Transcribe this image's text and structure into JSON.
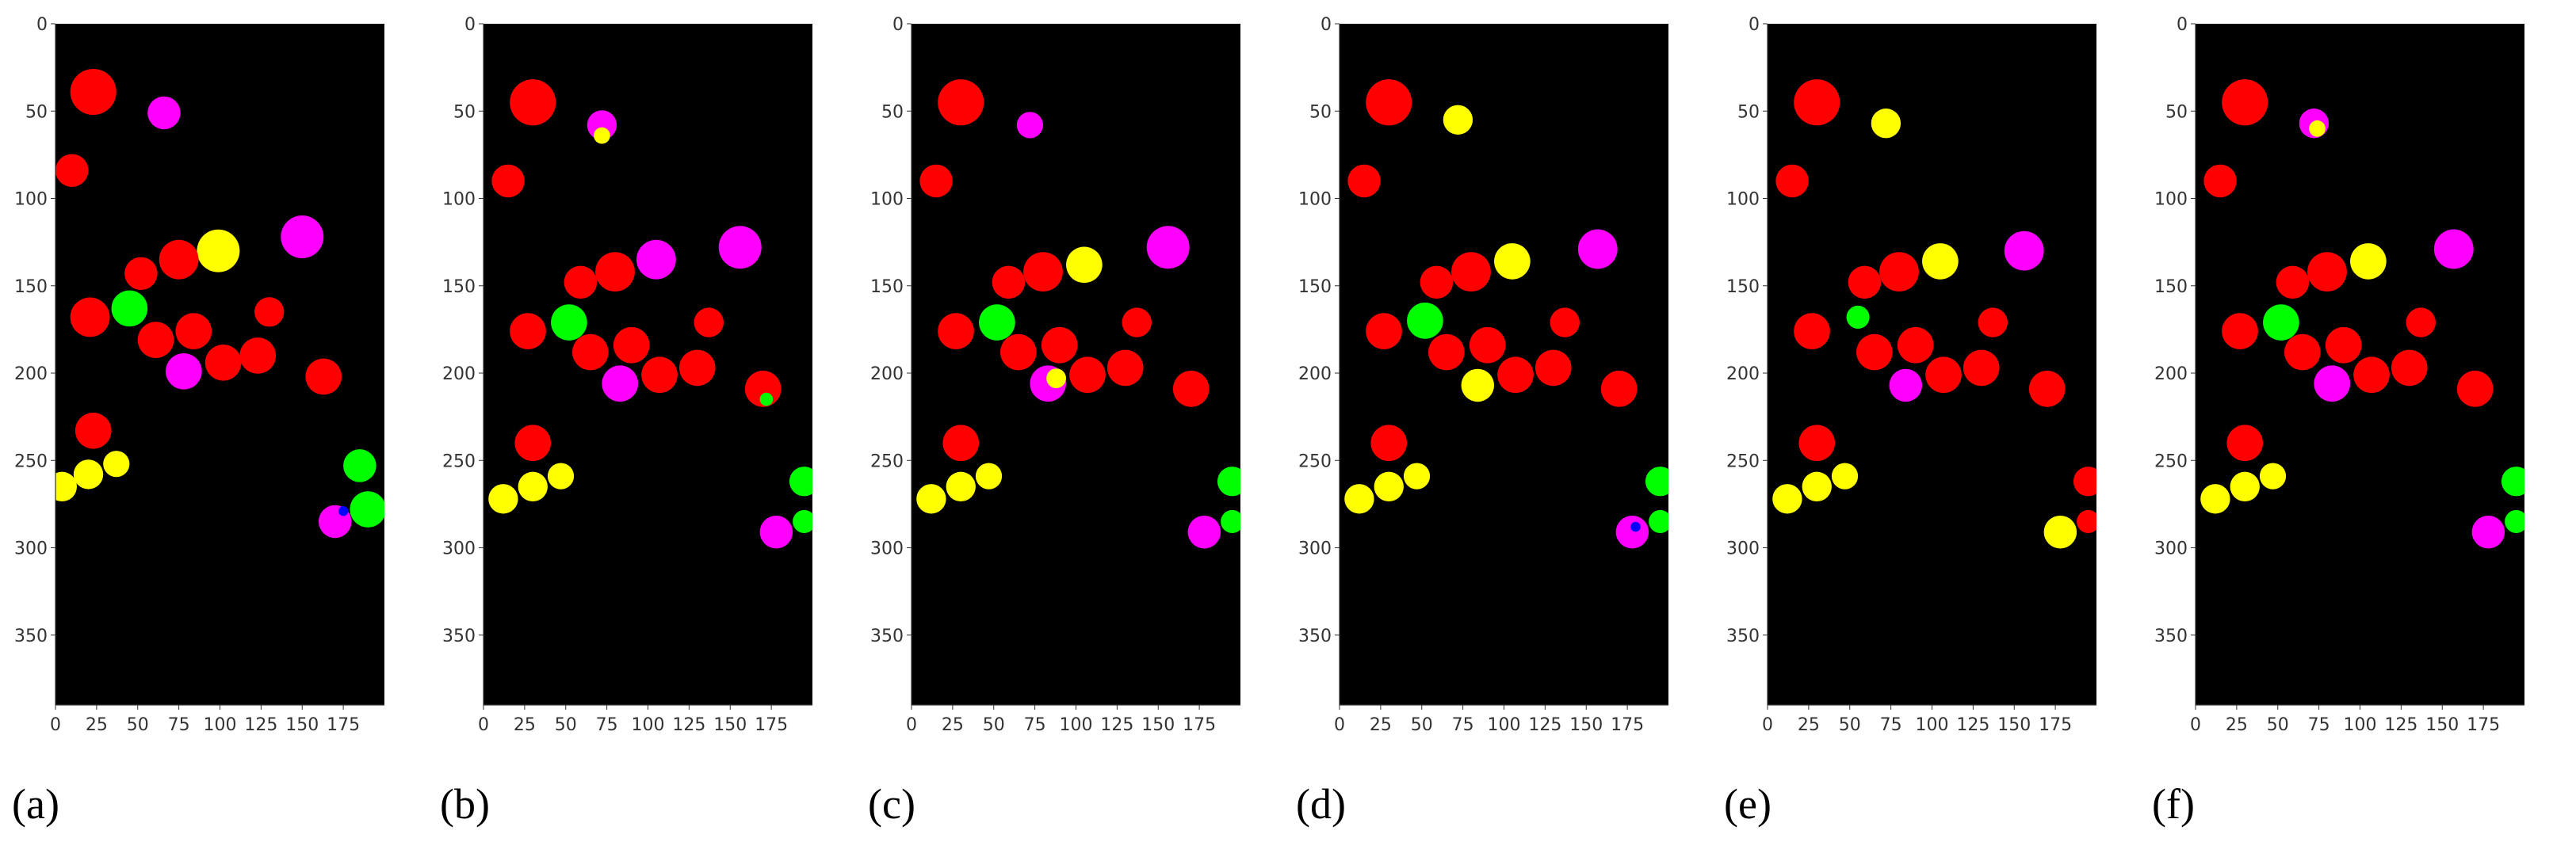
{
  "colors": {
    "background": "#000000",
    "red": "#ff0000",
    "yellow": "#ffff00",
    "magenta": "#ff00ff",
    "green": "#00ff00",
    "blue": "#0000ff"
  },
  "axes": {
    "x_range": [
      0,
      200
    ],
    "y_range": [
      390,
      0
    ],
    "x_ticks": [
      "0",
      "25",
      "50",
      "75",
      "100",
      "125",
      "150",
      "175"
    ],
    "y_ticks": [
      "0",
      "50",
      "100",
      "150",
      "200",
      "250",
      "300",
      "350"
    ]
  },
  "panels": [
    {
      "caption": "(a)",
      "blobs": [
        {
          "x": 23,
          "y": 39,
          "r": 14,
          "color": "red"
        },
        {
          "x": 10,
          "y": 84,
          "r": 10,
          "color": "red"
        },
        {
          "x": 66,
          "y": 51,
          "r": 10,
          "color": "magenta"
        },
        {
          "x": 99,
          "y": 130,
          "r": 13,
          "color": "yellow"
        },
        {
          "x": 150,
          "y": 122,
          "r": 13,
          "color": "magenta"
        },
        {
          "x": 52,
          "y": 143,
          "r": 10,
          "color": "red"
        },
        {
          "x": 75,
          "y": 135,
          "r": 12,
          "color": "red"
        },
        {
          "x": 45,
          "y": 163,
          "r": 11,
          "color": "green"
        },
        {
          "x": 21,
          "y": 168,
          "r": 12,
          "color": "red"
        },
        {
          "x": 61,
          "y": 181,
          "r": 11,
          "color": "red"
        },
        {
          "x": 84,
          "y": 176,
          "r": 11,
          "color": "red"
        },
        {
          "x": 130,
          "y": 165,
          "r": 9,
          "color": "red"
        },
        {
          "x": 78,
          "y": 199,
          "r": 11,
          "color": "magenta"
        },
        {
          "x": 102,
          "y": 194,
          "r": 11,
          "color": "red"
        },
        {
          "x": 123,
          "y": 190,
          "r": 11,
          "color": "red"
        },
        {
          "x": 163,
          "y": 202,
          "r": 11,
          "color": "red"
        },
        {
          "x": 23,
          "y": 233,
          "r": 11,
          "color": "red"
        },
        {
          "x": 4,
          "y": 265,
          "r": 9,
          "color": "yellow"
        },
        {
          "x": 20,
          "y": 258,
          "r": 9,
          "color": "yellow"
        },
        {
          "x": 37,
          "y": 252,
          "r": 8,
          "color": "yellow"
        },
        {
          "x": 185,
          "y": 253,
          "r": 10,
          "color": "green"
        },
        {
          "x": 190,
          "y": 278,
          "r": 11,
          "color": "green"
        },
        {
          "x": 170,
          "y": 285,
          "r": 10,
          "color": "magenta"
        },
        {
          "x": 175,
          "y": 279,
          "r": 3,
          "color": "blue"
        }
      ]
    },
    {
      "caption": "(b)",
      "blobs": [
        {
          "x": 30,
          "y": 45,
          "r": 14,
          "color": "red"
        },
        {
          "x": 15,
          "y": 90,
          "r": 10,
          "color": "red"
        },
        {
          "x": 72,
          "y": 58,
          "r": 9,
          "color": "magenta"
        },
        {
          "x": 72,
          "y": 64,
          "r": 5,
          "color": "yellow"
        },
        {
          "x": 105,
          "y": 135,
          "r": 12,
          "color": "magenta"
        },
        {
          "x": 156,
          "y": 128,
          "r": 13,
          "color": "magenta"
        },
        {
          "x": 59,
          "y": 148,
          "r": 10,
          "color": "red"
        },
        {
          "x": 80,
          "y": 142,
          "r": 12,
          "color": "red"
        },
        {
          "x": 52,
          "y": 171,
          "r": 11,
          "color": "green"
        },
        {
          "x": 27,
          "y": 176,
          "r": 11,
          "color": "red"
        },
        {
          "x": 65,
          "y": 188,
          "r": 11,
          "color": "red"
        },
        {
          "x": 90,
          "y": 184,
          "r": 11,
          "color": "red"
        },
        {
          "x": 137,
          "y": 171,
          "r": 9,
          "color": "red"
        },
        {
          "x": 83,
          "y": 206,
          "r": 11,
          "color": "magenta"
        },
        {
          "x": 107,
          "y": 201,
          "r": 11,
          "color": "red"
        },
        {
          "x": 130,
          "y": 197,
          "r": 11,
          "color": "red"
        },
        {
          "x": 170,
          "y": 209,
          "r": 11,
          "color": "red"
        },
        {
          "x": 172,
          "y": 215,
          "r": 4,
          "color": "green"
        },
        {
          "x": 30,
          "y": 240,
          "r": 11,
          "color": "red"
        },
        {
          "x": 12,
          "y": 272,
          "r": 9,
          "color": "yellow"
        },
        {
          "x": 30,
          "y": 265,
          "r": 9,
          "color": "yellow"
        },
        {
          "x": 47,
          "y": 259,
          "r": 8,
          "color": "yellow"
        },
        {
          "x": 195,
          "y": 262,
          "r": 9,
          "color": "green"
        },
        {
          "x": 195,
          "y": 285,
          "r": 7,
          "color": "green"
        },
        {
          "x": 178,
          "y": 291,
          "r": 10,
          "color": "magenta"
        }
      ]
    },
    {
      "caption": "(c)",
      "blobs": [
        {
          "x": 30,
          "y": 45,
          "r": 14,
          "color": "red"
        },
        {
          "x": 15,
          "y": 90,
          "r": 10,
          "color": "red"
        },
        {
          "x": 72,
          "y": 58,
          "r": 8,
          "color": "magenta"
        },
        {
          "x": 105,
          "y": 138,
          "r": 11,
          "color": "yellow"
        },
        {
          "x": 156,
          "y": 128,
          "r": 13,
          "color": "magenta"
        },
        {
          "x": 59,
          "y": 148,
          "r": 10,
          "color": "red"
        },
        {
          "x": 80,
          "y": 142,
          "r": 12,
          "color": "red"
        },
        {
          "x": 52,
          "y": 171,
          "r": 11,
          "color": "green"
        },
        {
          "x": 27,
          "y": 176,
          "r": 11,
          "color": "red"
        },
        {
          "x": 65,
          "y": 188,
          "r": 11,
          "color": "red"
        },
        {
          "x": 90,
          "y": 184,
          "r": 11,
          "color": "red"
        },
        {
          "x": 137,
          "y": 171,
          "r": 9,
          "color": "red"
        },
        {
          "x": 83,
          "y": 206,
          "r": 11,
          "color": "magenta"
        },
        {
          "x": 88,
          "y": 203,
          "r": 6,
          "color": "yellow"
        },
        {
          "x": 107,
          "y": 201,
          "r": 11,
          "color": "red"
        },
        {
          "x": 130,
          "y": 197,
          "r": 11,
          "color": "red"
        },
        {
          "x": 170,
          "y": 209,
          "r": 11,
          "color": "red"
        },
        {
          "x": 30,
          "y": 240,
          "r": 11,
          "color": "red"
        },
        {
          "x": 12,
          "y": 272,
          "r": 9,
          "color": "yellow"
        },
        {
          "x": 30,
          "y": 265,
          "r": 9,
          "color": "yellow"
        },
        {
          "x": 47,
          "y": 259,
          "r": 8,
          "color": "yellow"
        },
        {
          "x": 195,
          "y": 262,
          "r": 9,
          "color": "green"
        },
        {
          "x": 195,
          "y": 285,
          "r": 7,
          "color": "green"
        },
        {
          "x": 178,
          "y": 291,
          "r": 10,
          "color": "magenta"
        }
      ]
    },
    {
      "caption": "(d)",
      "blobs": [
        {
          "x": 30,
          "y": 45,
          "r": 14,
          "color": "red"
        },
        {
          "x": 15,
          "y": 90,
          "r": 10,
          "color": "red"
        },
        {
          "x": 72,
          "y": 55,
          "r": 9,
          "color": "yellow"
        },
        {
          "x": 105,
          "y": 136,
          "r": 11,
          "color": "yellow"
        },
        {
          "x": 157,
          "y": 129,
          "r": 12,
          "color": "magenta"
        },
        {
          "x": 59,
          "y": 148,
          "r": 10,
          "color": "red"
        },
        {
          "x": 80,
          "y": 142,
          "r": 12,
          "color": "red"
        },
        {
          "x": 52,
          "y": 170,
          "r": 11,
          "color": "green"
        },
        {
          "x": 27,
          "y": 176,
          "r": 11,
          "color": "red"
        },
        {
          "x": 65,
          "y": 188,
          "r": 11,
          "color": "red"
        },
        {
          "x": 90,
          "y": 184,
          "r": 11,
          "color": "red"
        },
        {
          "x": 137,
          "y": 171,
          "r": 9,
          "color": "red"
        },
        {
          "x": 84,
          "y": 207,
          "r": 10,
          "color": "yellow"
        },
        {
          "x": 107,
          "y": 201,
          "r": 11,
          "color": "red"
        },
        {
          "x": 130,
          "y": 197,
          "r": 11,
          "color": "red"
        },
        {
          "x": 170,
          "y": 209,
          "r": 11,
          "color": "red"
        },
        {
          "x": 30,
          "y": 240,
          "r": 11,
          "color": "red"
        },
        {
          "x": 12,
          "y": 272,
          "r": 9,
          "color": "yellow"
        },
        {
          "x": 30,
          "y": 265,
          "r": 9,
          "color": "yellow"
        },
        {
          "x": 47,
          "y": 259,
          "r": 8,
          "color": "yellow"
        },
        {
          "x": 195,
          "y": 262,
          "r": 9,
          "color": "green"
        },
        {
          "x": 195,
          "y": 285,
          "r": 7,
          "color": "green"
        },
        {
          "x": 178,
          "y": 291,
          "r": 10,
          "color": "magenta"
        },
        {
          "x": 180,
          "y": 288,
          "r": 3,
          "color": "blue"
        }
      ]
    },
    {
      "caption": "(e)",
      "blobs": [
        {
          "x": 30,
          "y": 45,
          "r": 14,
          "color": "red"
        },
        {
          "x": 15,
          "y": 90,
          "r": 10,
          "color": "red"
        },
        {
          "x": 72,
          "y": 57,
          "r": 9,
          "color": "yellow"
        },
        {
          "x": 105,
          "y": 136,
          "r": 11,
          "color": "yellow"
        },
        {
          "x": 156,
          "y": 130,
          "r": 12,
          "color": "magenta"
        },
        {
          "x": 59,
          "y": 148,
          "r": 10,
          "color": "red"
        },
        {
          "x": 80,
          "y": 142,
          "r": 12,
          "color": "red"
        },
        {
          "x": 55,
          "y": 168,
          "r": 7,
          "color": "green"
        },
        {
          "x": 27,
          "y": 176,
          "r": 11,
          "color": "red"
        },
        {
          "x": 65,
          "y": 188,
          "r": 11,
          "color": "red"
        },
        {
          "x": 90,
          "y": 184,
          "r": 11,
          "color": "red"
        },
        {
          "x": 137,
          "y": 171,
          "r": 9,
          "color": "red"
        },
        {
          "x": 84,
          "y": 207,
          "r": 10,
          "color": "magenta"
        },
        {
          "x": 107,
          "y": 201,
          "r": 11,
          "color": "red"
        },
        {
          "x": 130,
          "y": 197,
          "r": 11,
          "color": "red"
        },
        {
          "x": 170,
          "y": 209,
          "r": 11,
          "color": "red"
        },
        {
          "x": 30,
          "y": 240,
          "r": 11,
          "color": "red"
        },
        {
          "x": 12,
          "y": 272,
          "r": 9,
          "color": "yellow"
        },
        {
          "x": 30,
          "y": 265,
          "r": 9,
          "color": "yellow"
        },
        {
          "x": 47,
          "y": 259,
          "r": 8,
          "color": "yellow"
        },
        {
          "x": 195,
          "y": 262,
          "r": 9,
          "color": "red"
        },
        {
          "x": 195,
          "y": 285,
          "r": 7,
          "color": "red"
        },
        {
          "x": 178,
          "y": 291,
          "r": 10,
          "color": "yellow"
        }
      ]
    },
    {
      "caption": "(f)",
      "blobs": [
        {
          "x": 30,
          "y": 45,
          "r": 14,
          "color": "red"
        },
        {
          "x": 15,
          "y": 90,
          "r": 10,
          "color": "red"
        },
        {
          "x": 72,
          "y": 57,
          "r": 9,
          "color": "magenta"
        },
        {
          "x": 74,
          "y": 60,
          "r": 5,
          "color": "yellow"
        },
        {
          "x": 105,
          "y": 136,
          "r": 11,
          "color": "yellow"
        },
        {
          "x": 157,
          "y": 129,
          "r": 12,
          "color": "magenta"
        },
        {
          "x": 59,
          "y": 148,
          "r": 10,
          "color": "red"
        },
        {
          "x": 80,
          "y": 142,
          "r": 12,
          "color": "red"
        },
        {
          "x": 52,
          "y": 171,
          "r": 11,
          "color": "green"
        },
        {
          "x": 27,
          "y": 176,
          "r": 11,
          "color": "red"
        },
        {
          "x": 65,
          "y": 188,
          "r": 11,
          "color": "red"
        },
        {
          "x": 90,
          "y": 184,
          "r": 11,
          "color": "red"
        },
        {
          "x": 137,
          "y": 171,
          "r": 9,
          "color": "red"
        },
        {
          "x": 83,
          "y": 206,
          "r": 11,
          "color": "magenta"
        },
        {
          "x": 107,
          "y": 201,
          "r": 11,
          "color": "red"
        },
        {
          "x": 130,
          "y": 197,
          "r": 11,
          "color": "red"
        },
        {
          "x": 170,
          "y": 209,
          "r": 11,
          "color": "red"
        },
        {
          "x": 30,
          "y": 240,
          "r": 11,
          "color": "red"
        },
        {
          "x": 12,
          "y": 272,
          "r": 9,
          "color": "yellow"
        },
        {
          "x": 30,
          "y": 265,
          "r": 9,
          "color": "yellow"
        },
        {
          "x": 47,
          "y": 259,
          "r": 8,
          "color": "yellow"
        },
        {
          "x": 195,
          "y": 262,
          "r": 9,
          "color": "green"
        },
        {
          "x": 195,
          "y": 285,
          "r": 7,
          "color": "green"
        },
        {
          "x": 178,
          "y": 291,
          "r": 10,
          "color": "magenta"
        }
      ]
    }
  ]
}
